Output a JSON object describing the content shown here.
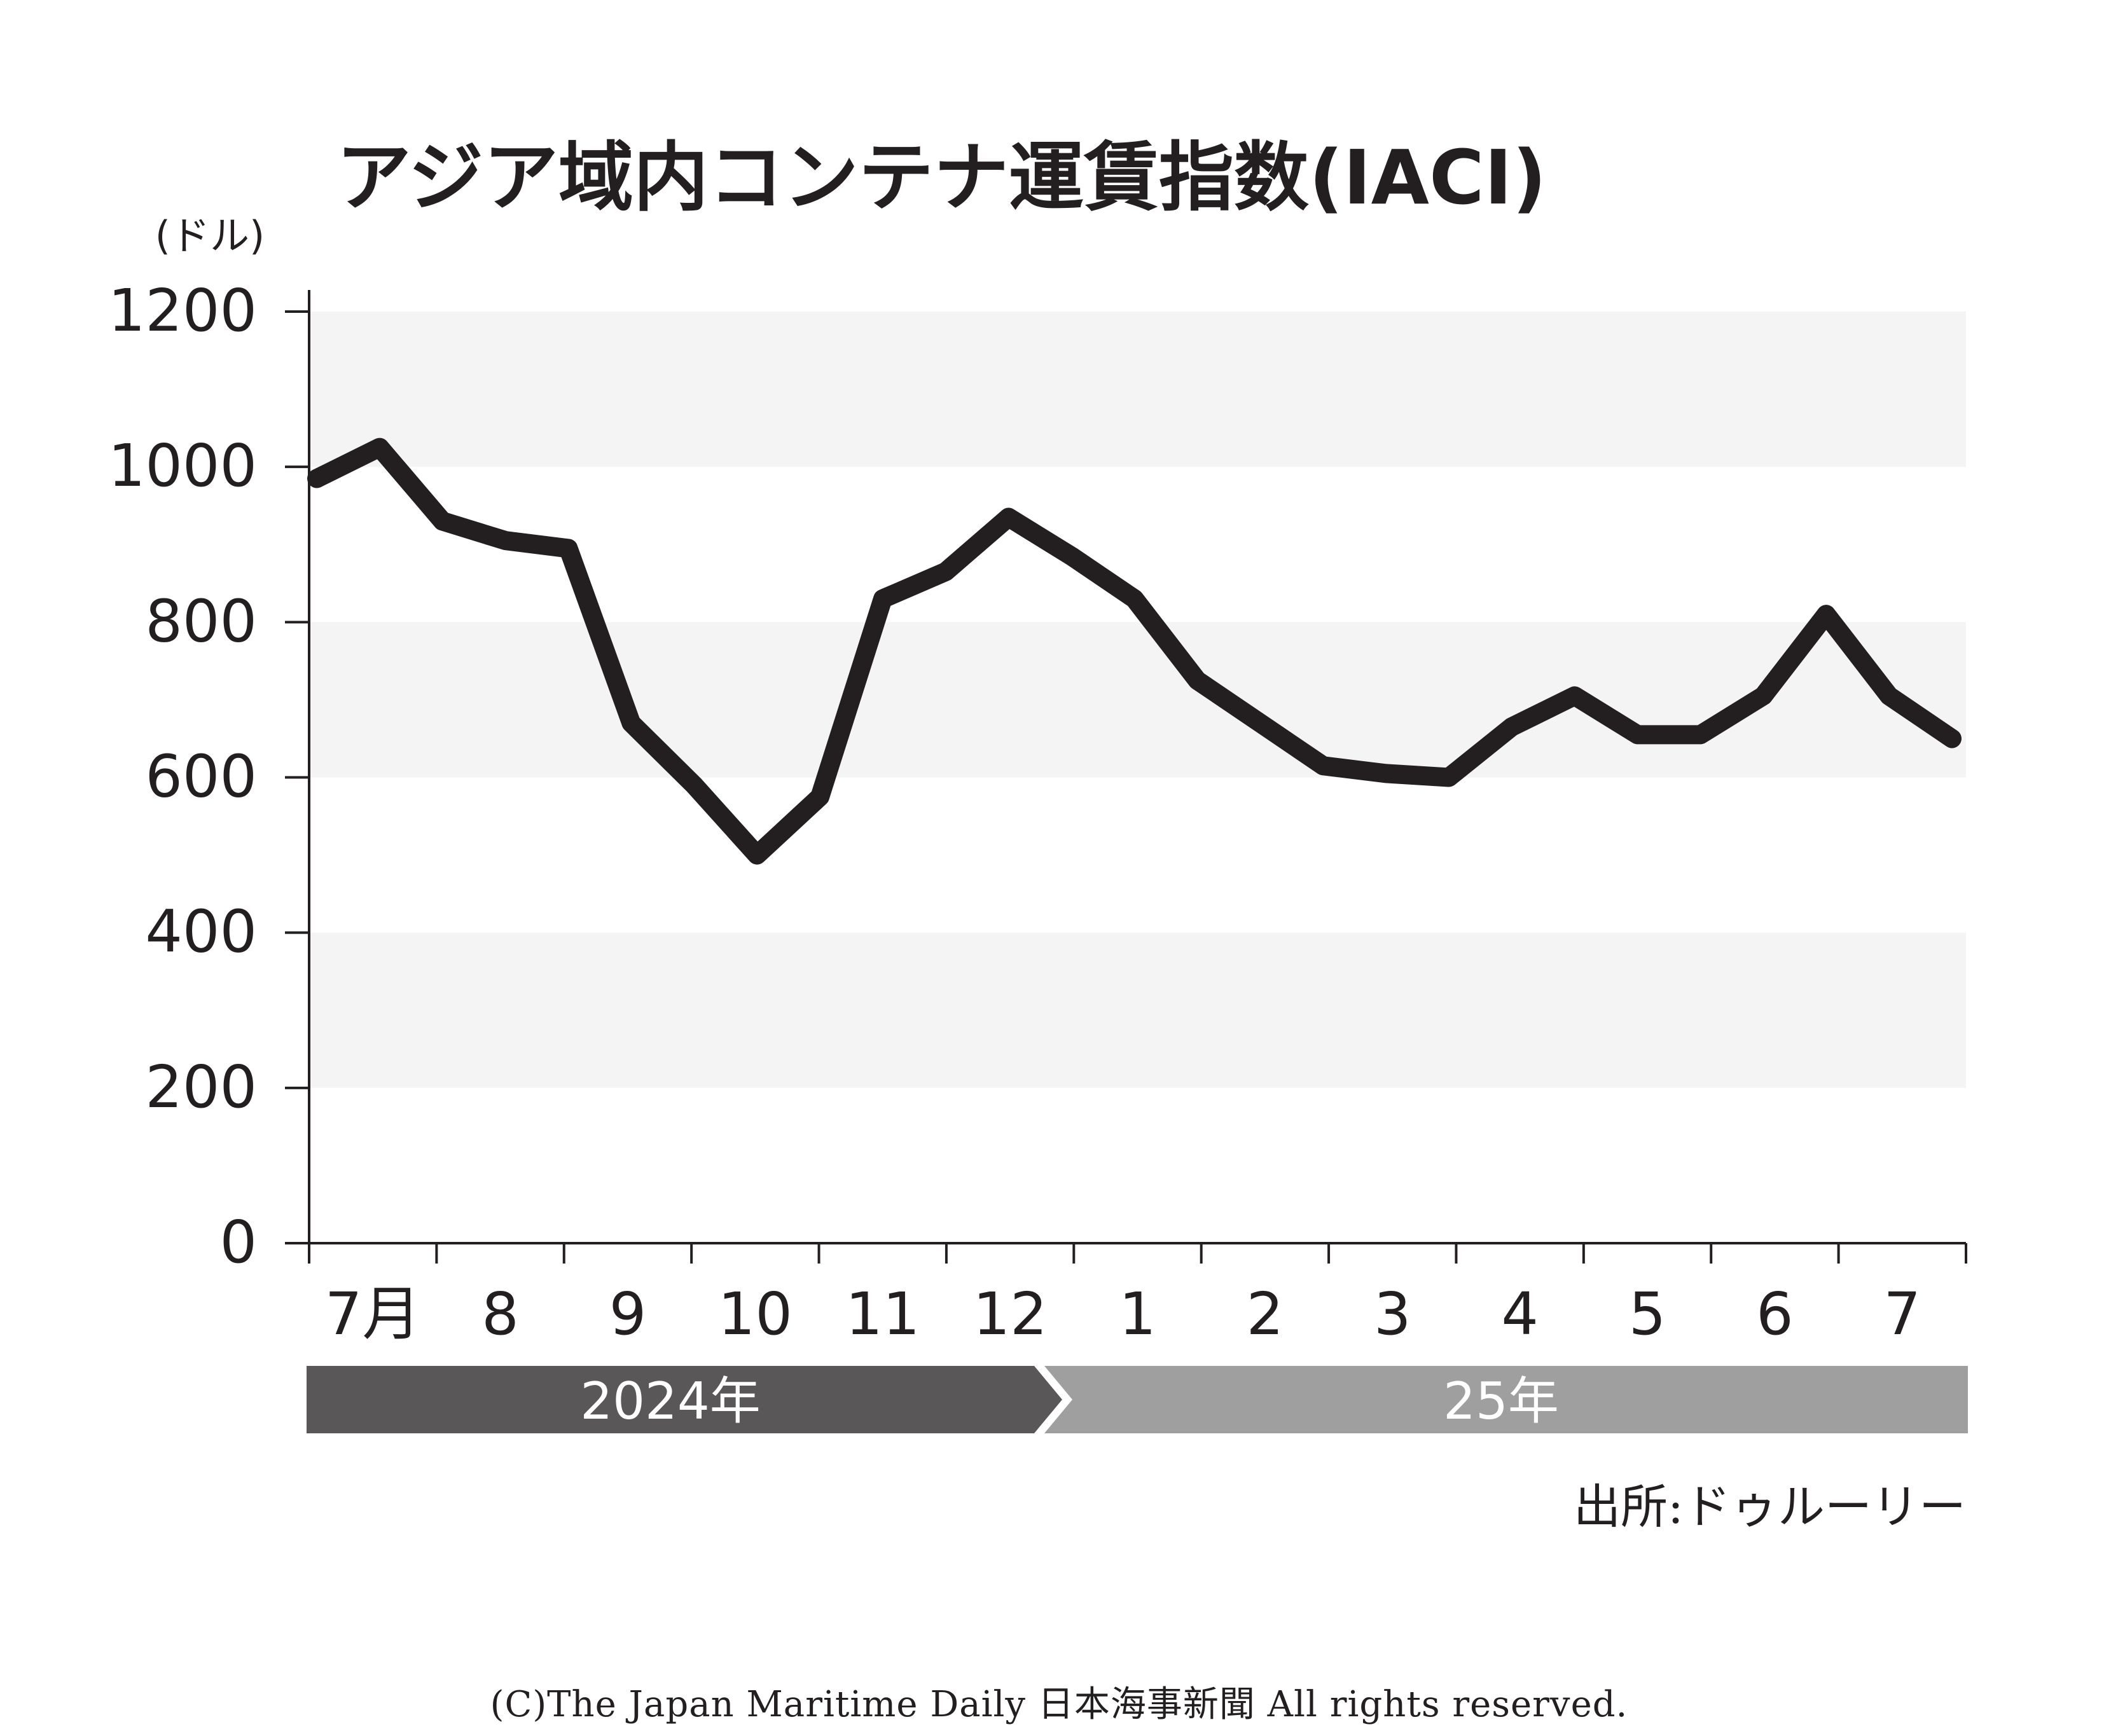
{
  "chart_data": {
    "type": "line",
    "title": "アジア域内コンテナ運賃指数(IACI)",
    "unit": "(ドル)",
    "ylim": [
      0,
      1200
    ],
    "yticks": [
      0,
      200,
      400,
      600,
      800,
      1000,
      1200
    ],
    "month_labels": [
      "7月",
      "8",
      "9",
      "10",
      "11",
      "12",
      "1",
      "2",
      "3",
      "4",
      "5",
      "6",
      "7"
    ],
    "year_bands": [
      {
        "label": "2024年",
        "color": "#595757"
      },
      {
        "label": "25年",
        "color": "#9f9fa0"
      }
    ],
    "grid": "alternating horizontal bands",
    "line_color": "#231f20",
    "band_color": "#f4f4f4",
    "series": [
      {
        "values": [
          985,
          1025,
          930,
          905,
          895,
          670,
          590,
          500,
          575,
          830,
          865,
          935,
          885,
          830,
          725,
          670,
          615,
          605,
          600,
          665,
          705,
          655,
          655,
          705,
          810,
          705,
          650
        ]
      }
    ]
  },
  "footer": {
    "source": "出所:ドゥルーリー",
    "copyright": "(C)The Japan Maritime Daily 日本海事新聞 All rights reserved."
  }
}
